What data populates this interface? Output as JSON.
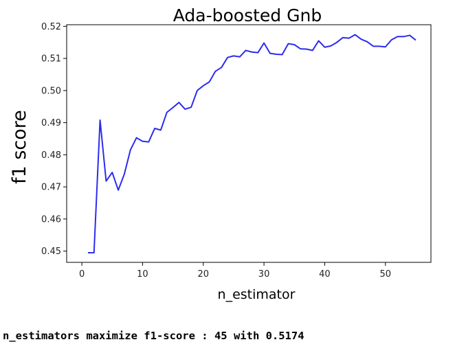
{
  "chart_data": {
    "type": "line",
    "title": "Ada-boosted Gnb",
    "xlabel": "n_estimator",
    "ylabel": "f1 score",
    "xlim": [
      -2.5,
      57.5
    ],
    "ylim": [
      0.4465,
      0.5205
    ],
    "xticks": [
      0,
      10,
      20,
      30,
      40,
      50
    ],
    "yticks": [
      0.45,
      0.46,
      0.47,
      0.48,
      0.49,
      0.5,
      0.51,
      0.52
    ],
    "grid": false,
    "series": [
      {
        "color": "#2b2bef",
        "x": [
          1,
          2,
          3,
          4,
          5,
          6,
          7,
          8,
          9,
          10,
          11,
          12,
          13,
          14,
          15,
          16,
          17,
          18,
          19,
          20,
          21,
          22,
          23,
          24,
          25,
          26,
          27,
          28,
          29,
          30,
          31,
          32,
          33,
          34,
          35,
          36,
          37,
          38,
          39,
          40,
          41,
          42,
          43,
          44,
          45,
          46,
          47,
          48,
          49,
          50,
          51,
          52,
          53,
          54,
          55
        ],
        "y": [
          0.4495,
          0.4495,
          0.4908,
          0.4718,
          0.4745,
          0.469,
          0.474,
          0.4815,
          0.4853,
          0.4842,
          0.484,
          0.4882,
          0.4877,
          0.4932,
          0.4947,
          0.4963,
          0.4942,
          0.4948,
          0.5,
          0.5015,
          0.5027,
          0.506,
          0.5072,
          0.5103,
          0.5108,
          0.5105,
          0.5125,
          0.512,
          0.5118,
          0.5148,
          0.5116,
          0.5113,
          0.5112,
          0.5146,
          0.5143,
          0.513,
          0.5129,
          0.5125,
          0.5155,
          0.5135,
          0.5139,
          0.515,
          0.5165,
          0.5163,
          0.5174,
          0.516,
          0.5152,
          0.5138,
          0.5138,
          0.5136,
          0.5158,
          0.5168,
          0.5168,
          0.5172,
          0.5157
        ]
      }
    ]
  },
  "output_text": "n_estimators maximize f1-score : 45 with 0.5174"
}
